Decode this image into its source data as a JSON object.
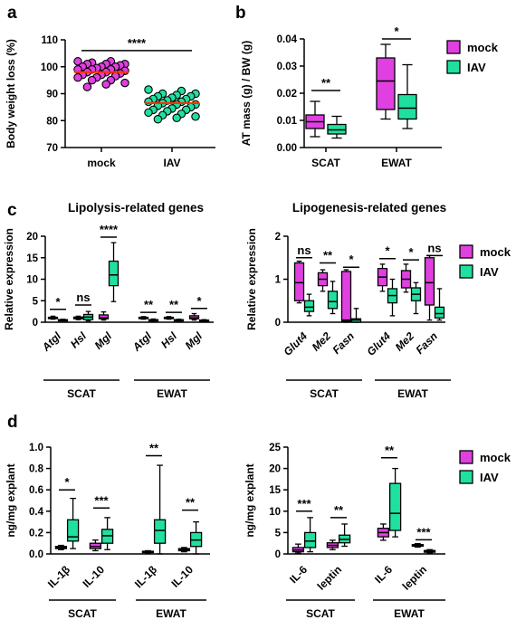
{
  "colors": {
    "mock": "#e040e0",
    "iav": "#20e0a0",
    "mean_line": "#ff3300"
  },
  "chart_data": [
    {
      "id": "a",
      "type": "scatter",
      "panel": "a",
      "ylabel": "Body weight loss (%)",
      "ylim": [
        70,
        110
      ],
      "yticks": [
        70,
        80,
        90,
        100,
        110
      ],
      "categories": [
        "mock",
        "IAV"
      ],
      "series": [
        {
          "name": "mock",
          "values": [
            102,
            102,
            101.5,
            101,
            101,
            101,
            100.5,
            100,
            100,
            100,
            99.5,
            99,
            99,
            99,
            98.5,
            98,
            98,
            97.5,
            97,
            97,
            96.5,
            96,
            96,
            95,
            95,
            94,
            93.5,
            92.5
          ],
          "mean": 98
        },
        {
          "name": "IAV",
          "values": [
            91.5,
            91,
            90,
            90,
            89.5,
            89,
            89,
            88.5,
            88,
            88,
            87.5,
            87,
            87,
            86.5,
            86,
            86,
            85.5,
            85,
            84.5,
            84,
            84,
            83.5,
            83,
            82.5,
            82,
            81.5,
            81,
            80.5
          ],
          "mean": 86.5
        }
      ],
      "significance": [
        {
          "label": "****",
          "from": 0,
          "to": 1,
          "y": 106
        }
      ]
    },
    {
      "id": "b",
      "type": "box",
      "panel": "b",
      "ylabel": "AT mass (g) / BW (g)",
      "ylim": [
        0,
        0.04
      ],
      "yticks": [
        "0.00",
        "0.01",
        "0.02",
        "0.03",
        "0.04"
      ],
      "groups": [
        "SCAT",
        "EWAT"
      ],
      "series_names": [
        "mock",
        "IAV"
      ],
      "boxes": [
        {
          "group": "SCAT",
          "series": "mock",
          "min": 0.004,
          "q1": 0.007,
          "median": 0.0095,
          "q3": 0.012,
          "max": 0.017
        },
        {
          "group": "SCAT",
          "series": "IAV",
          "min": 0.0035,
          "q1": 0.005,
          "median": 0.0065,
          "q3": 0.0085,
          "max": 0.0115
        },
        {
          "group": "EWAT",
          "series": "mock",
          "min": 0.0105,
          "q1": 0.014,
          "median": 0.0245,
          "q3": 0.033,
          "max": 0.038
        },
        {
          "group": "EWAT",
          "series": "IAV",
          "min": 0.007,
          "q1": 0.0105,
          "median": 0.0145,
          "q3": 0.0195,
          "max": 0.0305
        }
      ],
      "significance": [
        {
          "label": "**",
          "group": 0,
          "y": 0.021
        },
        {
          "label": "*",
          "group": 1,
          "y": 0.04
        }
      ]
    },
    {
      "id": "c1",
      "type": "box",
      "panel": "c",
      "title": "Lipolysis-related genes",
      "ylabel": "Relative expression",
      "ylim": [
        0,
        20
      ],
      "yticks": [
        0,
        5,
        10,
        15,
        20
      ],
      "groups": [
        "SCAT",
        "EWAT"
      ],
      "categories": [
        "Atgl",
        "Hsl",
        "Mgl",
        "Atgl",
        "Hsl",
        "Mgl"
      ],
      "italic_categories": true,
      "series_names": [
        "mock",
        "IAV"
      ],
      "boxes": [
        {
          "cat": 0,
          "series": "mock",
          "min": 0.7,
          "q1": 0.85,
          "median": 1.0,
          "q3": 1.15,
          "max": 1.4
        },
        {
          "cat": 0,
          "series": "IAV",
          "min": 0.4,
          "q1": 0.5,
          "median": 0.55,
          "q3": 0.6,
          "max": 0.7
        },
        {
          "cat": 1,
          "series": "mock",
          "min": 0.6,
          "q1": 0.8,
          "median": 1.0,
          "q3": 1.2,
          "max": 1.4
        },
        {
          "cat": 1,
          "series": "IAV",
          "min": 0.3,
          "q1": 0.6,
          "median": 1.2,
          "q3": 1.8,
          "max": 2.5
        },
        {
          "cat": 2,
          "series": "mock",
          "min": 0.5,
          "q1": 0.8,
          "median": 1.0,
          "q3": 1.7,
          "max": 2.4
        },
        {
          "cat": 2,
          "series": "IAV",
          "min": 4.8,
          "q1": 8.5,
          "median": 11,
          "q3": 14.2,
          "max": 18.5
        },
        {
          "cat": 3,
          "series": "mock",
          "min": 0.7,
          "q1": 0.85,
          "median": 1.0,
          "q3": 1.15,
          "max": 1.3
        },
        {
          "cat": 3,
          "series": "IAV",
          "min": 0.3,
          "q1": 0.4,
          "median": 0.5,
          "q3": 0.6,
          "max": 0.75
        },
        {
          "cat": 4,
          "series": "mock",
          "min": 0.7,
          "q1": 0.85,
          "median": 1.0,
          "q3": 1.15,
          "max": 1.3
        },
        {
          "cat": 4,
          "series": "IAV",
          "min": 0.3,
          "q1": 0.4,
          "median": 0.5,
          "q3": 0.6,
          "max": 0.7
        },
        {
          "cat": 5,
          "series": "mock",
          "min": 0.5,
          "q1": 0.8,
          "median": 1.0,
          "q3": 1.5,
          "max": 2.0
        },
        {
          "cat": 5,
          "series": "IAV",
          "min": 0.2,
          "q1": 0.3,
          "median": 0.4,
          "q3": 0.5,
          "max": 0.6
        }
      ],
      "significance": [
        {
          "label": "*",
          "cat": 0,
          "y": 3.0
        },
        {
          "label": "ns",
          "cat": 1,
          "y": 4.0
        },
        {
          "label": "****",
          "cat": 2,
          "y": 19.8
        },
        {
          "label": "**",
          "cat": 3,
          "y": 2.3
        },
        {
          "label": "**",
          "cat": 4,
          "y": 2.3
        },
        {
          "label": "*",
          "cat": 5,
          "y": 3.2
        }
      ]
    },
    {
      "id": "c2",
      "type": "box",
      "panel": "c",
      "title": "Lipogenesis-related genes",
      "ylabel": "Relative expression",
      "ylim": [
        0,
        2
      ],
      "yticks": [
        0,
        1,
        2
      ],
      "groups": [
        "SCAT",
        "EWAT"
      ],
      "categories": [
        "Glut4",
        "Me2",
        "Fasn",
        "Glut4",
        "Me2",
        "Fasn"
      ],
      "italic_categories": true,
      "series_names": [
        "mock",
        "IAV"
      ],
      "legend": [
        "mock",
        "IAV"
      ],
      "boxes": [
        {
          "cat": 0,
          "series": "mock",
          "min": 0.45,
          "q1": 0.5,
          "median": 0.92,
          "q3": 1.38,
          "max": 1.42
        },
        {
          "cat": 0,
          "series": "IAV",
          "min": 0.15,
          "q1": 0.25,
          "median": 0.35,
          "q3": 0.5,
          "max": 0.65
        },
        {
          "cat": 1,
          "series": "mock",
          "min": 0.72,
          "q1": 0.85,
          "median": 1.0,
          "q3": 1.15,
          "max": 1.22
        },
        {
          "cat": 1,
          "series": "IAV",
          "min": 0.2,
          "q1": 0.32,
          "median": 0.48,
          "q3": 0.72,
          "max": 0.95
        },
        {
          "cat": 2,
          "series": "mock",
          "min": 0.0,
          "q1": 0.02,
          "median": 0.05,
          "q3": 1.18,
          "max": 1.22
        },
        {
          "cat": 2,
          "series": "IAV",
          "min": 0.0,
          "q1": 0.0,
          "median": 0.05,
          "q3": 0.08,
          "max": 0.32
        },
        {
          "cat": 3,
          "series": "mock",
          "min": 0.72,
          "q1": 0.85,
          "median": 1.05,
          "q3": 1.25,
          "max": 1.35
        },
        {
          "cat": 3,
          "series": "IAV",
          "min": 0.15,
          "q1": 0.45,
          "median": 0.62,
          "q3": 0.78,
          "max": 1.0
        },
        {
          "cat": 4,
          "series": "mock",
          "min": 0.7,
          "q1": 0.8,
          "median": 1.0,
          "q3": 1.2,
          "max": 1.35
        },
        {
          "cat": 4,
          "series": "IAV",
          "min": 0.2,
          "q1": 0.5,
          "median": 0.65,
          "q3": 0.8,
          "max": 0.92
        },
        {
          "cat": 5,
          "series": "mock",
          "min": 0.05,
          "q1": 0.4,
          "median": 0.92,
          "q3": 1.5,
          "max": 1.55
        },
        {
          "cat": 5,
          "series": "IAV",
          "min": 0.05,
          "q1": 0.1,
          "median": 0.2,
          "q3": 0.35,
          "max": 0.78
        }
      ],
      "significance": [
        {
          "label": "ns",
          "cat": 0,
          "y": 1.5
        },
        {
          "label": "**",
          "cat": 1,
          "y": 1.38
        },
        {
          "label": "*",
          "cat": 2,
          "y": 1.28
        },
        {
          "label": "*",
          "cat": 3,
          "y": 1.48
        },
        {
          "label": "*",
          "cat": 4,
          "y": 1.45
        },
        {
          "label": "ns",
          "cat": 5,
          "y": 1.55
        }
      ]
    },
    {
      "id": "d1",
      "type": "box",
      "panel": "d",
      "ylabel": "ng/mg explant",
      "ylim": [
        0,
        1.0
      ],
      "yticks": [
        "0.0",
        "0.2",
        "0.4",
        "0.6",
        "0.8",
        "1.0"
      ],
      "groups": [
        "SCAT",
        "EWAT"
      ],
      "categories": [
        "IL-1β",
        "IL-10",
        "IL-1β",
        "IL-10"
      ],
      "italic_categories": false,
      "series_names": [
        "mock",
        "IAV"
      ],
      "boxes": [
        {
          "cat": 0,
          "series": "mock",
          "min": 0.04,
          "q1": 0.05,
          "median": 0.06,
          "q3": 0.07,
          "max": 0.08
        },
        {
          "cat": 0,
          "series": "IAV",
          "min": 0.05,
          "q1": 0.12,
          "median": 0.16,
          "q3": 0.32,
          "max": 0.52
        },
        {
          "cat": 1,
          "series": "mock",
          "min": 0.03,
          "q1": 0.05,
          "median": 0.07,
          "q3": 0.1,
          "max": 0.13
        },
        {
          "cat": 1,
          "series": "IAV",
          "min": 0.04,
          "q1": 0.1,
          "median": 0.17,
          "q3": 0.23,
          "max": 0.34
        },
        {
          "cat": 2,
          "series": "mock",
          "min": 0.01,
          "q1": 0.015,
          "median": 0.02,
          "q3": 0.025,
          "max": 0.03
        },
        {
          "cat": 2,
          "series": "IAV",
          "min": 0.0,
          "q1": 0.1,
          "median": 0.22,
          "q3": 0.32,
          "max": 0.83
        },
        {
          "cat": 3,
          "series": "mock",
          "min": 0.02,
          "q1": 0.03,
          "median": 0.04,
          "q3": 0.05,
          "max": 0.06
        },
        {
          "cat": 3,
          "series": "IAV",
          "min": 0.0,
          "q1": 0.07,
          "median": 0.13,
          "q3": 0.2,
          "max": 0.3
        }
      ],
      "significance": [
        {
          "label": "*",
          "cat": 0,
          "y": 0.6
        },
        {
          "label": "***",
          "cat": 1,
          "y": 0.43
        },
        {
          "label": "**",
          "cat": 2,
          "y": 0.92
        },
        {
          "label": "**",
          "cat": 3,
          "y": 0.41
        }
      ]
    },
    {
      "id": "d2",
      "type": "box",
      "panel": "d",
      "ylabel": "ng/mg explant",
      "ylim": [
        0,
        25
      ],
      "yticks": [
        0,
        5,
        10,
        15,
        20,
        25
      ],
      "groups": [
        "SCAT",
        "EWAT"
      ],
      "categories": [
        "IL-6",
        "leptin",
        "IL-6",
        "leptin"
      ],
      "italic_categories": false,
      "series_names": [
        "mock",
        "IAV"
      ],
      "legend": [
        "mock",
        "IAV"
      ],
      "boxes": [
        {
          "cat": 0,
          "series": "mock",
          "min": 0.2,
          "q1": 0.5,
          "median": 0.9,
          "q3": 1.5,
          "max": 2.3
        },
        {
          "cat": 0,
          "series": "IAV",
          "min": 0.5,
          "q1": 1.5,
          "median": 3.0,
          "q3": 5.0,
          "max": 8.5
        },
        {
          "cat": 1,
          "series": "mock",
          "min": 1.0,
          "q1": 1.5,
          "median": 2.0,
          "q3": 2.6,
          "max": 3.2
        },
        {
          "cat": 1,
          "series": "IAV",
          "min": 1.8,
          "q1": 2.6,
          "median": 3.4,
          "q3": 4.4,
          "max": 7.0
        },
        {
          "cat": 2,
          "series": "mock",
          "min": 3.2,
          "q1": 4.0,
          "median": 5.0,
          "q3": 6.0,
          "max": 7.0
        },
        {
          "cat": 2,
          "series": "IAV",
          "min": 4.0,
          "q1": 5.5,
          "median": 9.5,
          "q3": 16.5,
          "max": 20.0
        },
        {
          "cat": 3,
          "series": "mock",
          "min": 1.6,
          "q1": 1.8,
          "median": 2.0,
          "q3": 2.2,
          "max": 2.4
        },
        {
          "cat": 3,
          "series": "IAV",
          "min": 0.2,
          "q1": 0.4,
          "median": 0.6,
          "q3": 0.8,
          "max": 1.0
        }
      ],
      "significance": [
        {
          "label": "***",
          "cat": 0,
          "y": 10.0
        },
        {
          "label": "**",
          "cat": 1,
          "y": 8.5
        },
        {
          "label": "**",
          "cat": 2,
          "y": 22.5
        },
        {
          "label": "***",
          "cat": 3,
          "y": 3.3
        }
      ]
    }
  ]
}
